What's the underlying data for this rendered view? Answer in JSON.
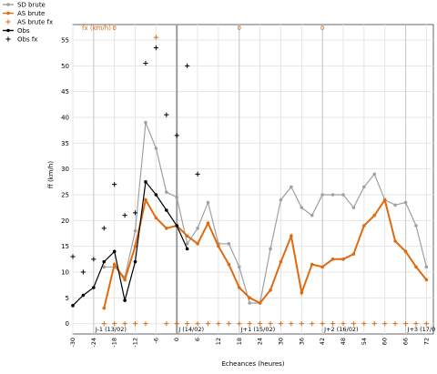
{
  "chart_data": {
    "type": "line",
    "xlabel": "Echeances (heures)",
    "ylabel": "ff (km/h)",
    "fx_axis_label": "fx (km/h) :",
    "xlim": [
      -30,
      74
    ],
    "ylim": [
      -2,
      58
    ],
    "x_ticks": [
      -30,
      -24,
      -18,
      -12,
      -6,
      0,
      6,
      12,
      18,
      24,
      30,
      36,
      42,
      48,
      54,
      60,
      66,
      72
    ],
    "y_ticks": [
      0,
      5,
      10,
      15,
      20,
      25,
      30,
      35,
      40,
      45,
      50,
      55
    ],
    "day_markers": [
      {
        "x": -24,
        "label": "J-1 (13/02)"
      },
      {
        "x": 0,
        "label": "J (14/02)"
      },
      {
        "x": 18,
        "label": "J+1 (15/02)"
      },
      {
        "x": 42,
        "label": "J+2 (16/02)"
      },
      {
        "x": 66,
        "label": "J+3 (17/0"
      }
    ],
    "top_markers": [
      {
        "x": -18,
        "label": "0"
      },
      {
        "x": 18,
        "label": "0"
      },
      {
        "x": 42,
        "label": "0"
      }
    ],
    "vertical_line_x": 0,
    "series": [
      {
        "name": "SD brute",
        "color": "#a0a0a0",
        "marker": "dot",
        "points": [
          [
            -21,
            11
          ],
          [
            -18,
            11
          ],
          [
            -15,
            9
          ],
          [
            -12,
            18
          ],
          [
            -9,
            39
          ],
          [
            -6,
            34
          ],
          [
            -3,
            25.5
          ],
          [
            0,
            24.5
          ],
          [
            3,
            15.5
          ],
          [
            6,
            18.5
          ],
          [
            9,
            23.5
          ],
          [
            12,
            15.5
          ],
          [
            15,
            15.5
          ],
          [
            18,
            11
          ],
          [
            21,
            4
          ],
          [
            24,
            4
          ],
          [
            27,
            14.5
          ],
          [
            30,
            24
          ],
          [
            33,
            26.5
          ],
          [
            36,
            22.5
          ],
          [
            39,
            21
          ],
          [
            42,
            25
          ],
          [
            45,
            25
          ],
          [
            48,
            25
          ],
          [
            51,
            22.5
          ],
          [
            54,
            26.5
          ],
          [
            57,
            29
          ],
          [
            60,
            24
          ],
          [
            63,
            23
          ],
          [
            66,
            23.5
          ],
          [
            69,
            19
          ],
          [
            72,
            11
          ]
        ]
      },
      {
        "name": "AS brute",
        "color": "#e06a10",
        "marker": "dot",
        "points": [
          [
            -21,
            3
          ],
          [
            -18,
            11.5
          ],
          [
            -15,
            8.5
          ],
          [
            -12,
            15
          ],
          [
            -9,
            24
          ],
          [
            -6,
            20.5
          ],
          [
            -3,
            18.5
          ],
          [
            0,
            19
          ],
          [
            3,
            17
          ],
          [
            6,
            15.5
          ],
          [
            9,
            19.5
          ],
          [
            12,
            15
          ],
          [
            15,
            11.5
          ],
          [
            18,
            7
          ],
          [
            21,
            5
          ],
          [
            24,
            4
          ],
          [
            27,
            6.5
          ],
          [
            30,
            12
          ],
          [
            33,
            17
          ],
          [
            36,
            6
          ],
          [
            39,
            11.5
          ],
          [
            42,
            11
          ],
          [
            45,
            12.5
          ],
          [
            48,
            12.5
          ],
          [
            51,
            13.5
          ],
          [
            54,
            19
          ],
          [
            57,
            21
          ],
          [
            60,
            24
          ],
          [
            63,
            16
          ],
          [
            66,
            14
          ],
          [
            69,
            11
          ],
          [
            72,
            8.5
          ]
        ]
      },
      {
        "name": "AS brute fx",
        "color": "#e06a10",
        "marker": "plus",
        "points": [
          [
            -21,
            0
          ],
          [
            -18,
            0
          ],
          [
            -15,
            0
          ],
          [
            -12,
            0
          ],
          [
            -9,
            0
          ],
          [
            -6,
            55.5
          ],
          [
            -3,
            0
          ],
          [
            0,
            0
          ],
          [
            3,
            0
          ],
          [
            6,
            0
          ],
          [
            9,
            0
          ],
          [
            12,
            0
          ],
          [
            15,
            0
          ],
          [
            18,
            0
          ],
          [
            21,
            0
          ],
          [
            24,
            0
          ],
          [
            27,
            0
          ],
          [
            30,
            0
          ],
          [
            33,
            0
          ],
          [
            36,
            0
          ],
          [
            39,
            0
          ],
          [
            42,
            0
          ],
          [
            45,
            0
          ],
          [
            48,
            0
          ],
          [
            51,
            0
          ],
          [
            54,
            0
          ],
          [
            57,
            0
          ],
          [
            60,
            0
          ],
          [
            63,
            0
          ],
          [
            66,
            0
          ],
          [
            69,
            0
          ],
          [
            72,
            0
          ]
        ]
      },
      {
        "name": "Obs",
        "color": "#000000",
        "marker": "dot",
        "points": [
          [
            -30,
            3.5
          ],
          [
            -27,
            5.5
          ],
          [
            -24,
            7
          ],
          [
            -21,
            12
          ],
          [
            -18,
            14
          ],
          [
            -15,
            4.5
          ],
          [
            -12,
            12
          ],
          [
            -9,
            27.5
          ],
          [
            -6,
            25
          ],
          [
            -3,
            22
          ],
          [
            0,
            19
          ],
          [
            3,
            14.5
          ]
        ]
      },
      {
        "name": "Obs fx",
        "color": "#000000",
        "marker": "plus",
        "points": [
          [
            -30,
            13
          ],
          [
            -27,
            10
          ],
          [
            -24,
            12.5
          ],
          [
            -21,
            18.5
          ],
          [
            -18,
            27
          ],
          [
            -15,
            21
          ],
          [
            -12,
            21.5
          ],
          [
            -9,
            50.5
          ],
          [
            -6,
            53.5
          ],
          [
            -3,
            40.5
          ],
          [
            0,
            36.5
          ],
          [
            3,
            50
          ],
          [
            6,
            29
          ]
        ]
      }
    ]
  }
}
